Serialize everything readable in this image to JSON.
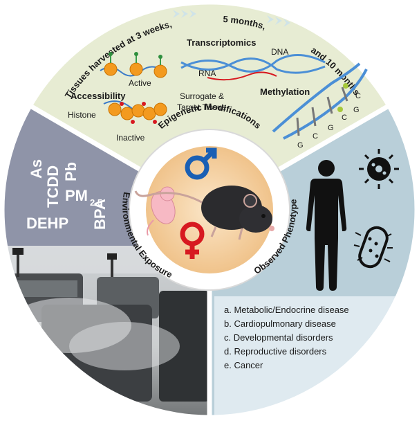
{
  "arc_text": {
    "harvest_1": "Tissues harvested at 3 weeks,",
    "harvest_2": "5 months,",
    "harvest_3": "and 10 months"
  },
  "top_panel": {
    "transcriptomics": "Transcriptomics",
    "accessibility": "Accessibility",
    "methylation": "Methylation",
    "active": "Active",
    "inactive": "Inactive",
    "histone": "Histone",
    "rna": "RNA",
    "dna": "DNA",
    "surrogate_1": "Surrogate &",
    "surrogate_2": "Target Tissue",
    "bases": [
      "G",
      "C",
      "G",
      "C",
      "G",
      "C"
    ]
  },
  "center": {
    "epigenetic": "Epigenetic Modifications",
    "environmental": "Environmental Exposure",
    "phenotype": "Observed Phenotype"
  },
  "left_panel": {
    "as": "As",
    "tcdd": "TCDD",
    "pb": "Pb",
    "pm": "PM",
    "pm_sub": "2.5",
    "bpa": "BPA",
    "dehp": "DEHP"
  },
  "right_panel": {
    "items": [
      "a. Metabolic/Endocrine disease",
      "b. Cardiopulmonary disease",
      "c. Developmental disorders",
      "d. Reproductive disorders",
      "e. Cancer"
    ]
  },
  "colors": {
    "top_bg": "#e7ecd3",
    "left_bg": "#8f94a8",
    "right_bg": "#b9cfd9",
    "center_ring": "#ffffff",
    "center_fill": "#f2c88f",
    "male_blue": "#1a5fb4",
    "female_red": "#d71920",
    "nucleosome": "#f39a1f",
    "dna_blue": "#4b8fd6"
  }
}
